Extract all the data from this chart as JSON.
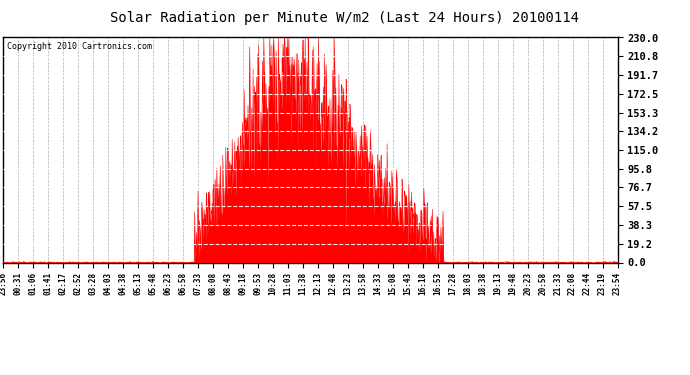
{
  "title": "Solar Radiation per Minute W/m2 (Last 24 Hours) 20100114",
  "copyright": "Copyright 2010 Cartronics.com",
  "background_color": "#ffffff",
  "plot_bg_color": "#ffffff",
  "bar_color": "#ff0000",
  "dashed_white_color": "#c8c8c8",
  "bottom_dashed_color": "#ff0000",
  "ymin": 0.0,
  "ymax": 230.0,
  "yticks": [
    0.0,
    19.2,
    38.3,
    57.5,
    76.7,
    95.8,
    115.0,
    134.2,
    153.3,
    172.5,
    191.7,
    210.8,
    230.0
  ],
  "num_points": 1440,
  "x_tick_labels": [
    "23:56",
    "00:31",
    "01:06",
    "01:41",
    "02:17",
    "02:52",
    "03:28",
    "04:03",
    "04:38",
    "05:13",
    "05:48",
    "06:23",
    "06:58",
    "07:33",
    "08:08",
    "08:43",
    "09:18",
    "09:53",
    "10:28",
    "11:03",
    "11:38",
    "12:13",
    "12:48",
    "13:23",
    "13:58",
    "14:33",
    "15:08",
    "15:43",
    "16:18",
    "16:53",
    "17:28",
    "18:03",
    "18:38",
    "19:13",
    "19:48",
    "20:23",
    "20:58",
    "21:33",
    "22:08",
    "22:44",
    "23:19",
    "23:54"
  ]
}
